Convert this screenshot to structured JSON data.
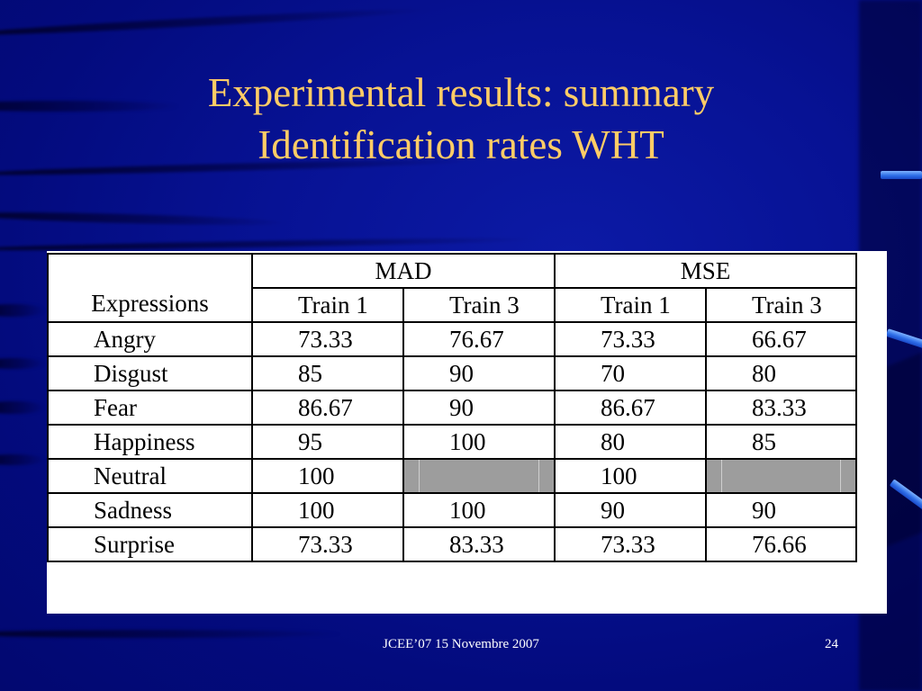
{
  "slide": {
    "title_line1": "Experimental results: summary",
    "title_line2": "Identification rates WHT",
    "footer_text": "JCEE’07 15 Novembre 2007",
    "page_number": "24",
    "colors": {
      "background": "#00008e",
      "title": "#ffcc66",
      "table_bg": "#ffffff",
      "shaded_cell": "#9d9d9d"
    }
  },
  "table": {
    "expressions_header": "Expressions",
    "group_headers": [
      "MAD",
      "MSE"
    ],
    "sub_headers": [
      "Train 1",
      "Train 3",
      "Train 1",
      "Train 3"
    ],
    "rows": [
      {
        "label": "Angry",
        "values": [
          "73.33",
          "76.67",
          "73.33",
          "66.67"
        ]
      },
      {
        "label": "Disgust",
        "values": [
          "85",
          "90",
          "70",
          "80"
        ]
      },
      {
        "label": "Fear",
        "values": [
          "86.67",
          "90",
          "86.67",
          "83.33"
        ]
      },
      {
        "label": "Happiness",
        "values": [
          "95",
          "100",
          "80",
          "85"
        ]
      },
      {
        "label": "Neutral",
        "values": [
          "100",
          "",
          "100",
          ""
        ]
      },
      {
        "label": "Sadness",
        "values": [
          "100",
          "100",
          "90",
          "90"
        ]
      },
      {
        "label": "Surprise",
        "values": [
          "73.33",
          "83.33",
          "73.33",
          "76.66"
        ]
      }
    ]
  }
}
